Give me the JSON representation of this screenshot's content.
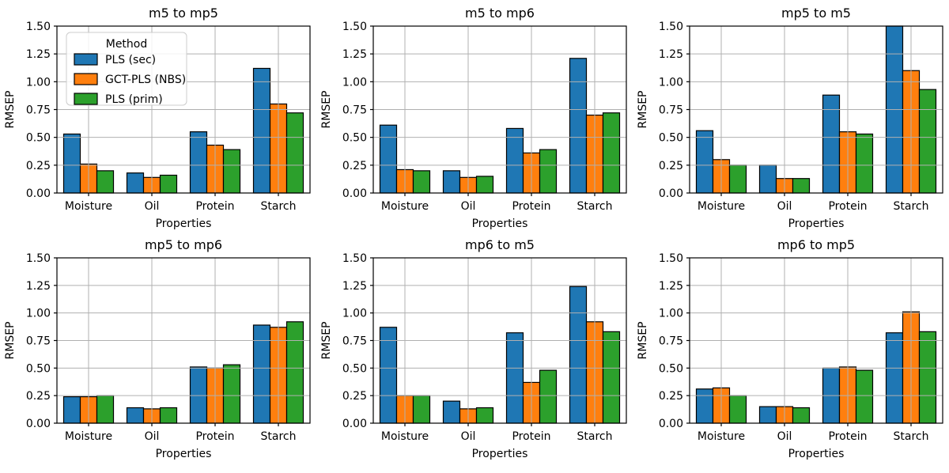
{
  "figure": {
    "background": "#ffffff",
    "grid_color": "#b0b0b0",
    "spine_color": "#000000",
    "bar_edge_color": "#000000",
    "text_color": "#000000",
    "xlabel": "Properties",
    "ylabel": "RMSEP",
    "ylim": [
      0,
      1.5
    ],
    "yticks": [
      0,
      0.25,
      0.5,
      0.75,
      1.0,
      1.25,
      1.5
    ],
    "ytick_labels": [
      "0.00",
      "0.25",
      "0.50",
      "0.75",
      "1.00",
      "1.25",
      "1.50"
    ],
    "grid": "on"
  },
  "legend": {
    "title": "Method",
    "position": "upper left",
    "entries": [
      {
        "label": "PLS (sec)",
        "color": "#1f77b4"
      },
      {
        "label": "GCT-PLS (NBS)",
        "color": "#ff7f0e"
      },
      {
        "label": "PLS (prim)",
        "color": "#2ca02c"
      }
    ]
  },
  "chart_data": [
    {
      "type": "bar",
      "title": "m5 to mp5",
      "xlabel": "Properties",
      "ylabel": "RMSEP",
      "ylim": [
        0,
        1.5
      ],
      "categories": [
        "Moisture",
        "Oil",
        "Protein",
        "Starch"
      ],
      "show_legend": true,
      "series": [
        {
          "name": "PLS (sec)",
          "color": "#1f77b4",
          "values": [
            0.53,
            0.18,
            0.55,
            1.12
          ]
        },
        {
          "name": "GCT-PLS (NBS)",
          "color": "#ff7f0e",
          "values": [
            0.26,
            0.14,
            0.43,
            0.8
          ]
        },
        {
          "name": "PLS (prim)",
          "color": "#2ca02c",
          "values": [
            0.2,
            0.16,
            0.39,
            0.72
          ]
        }
      ]
    },
    {
      "type": "bar",
      "title": "m5 to mp6",
      "xlabel": "Properties",
      "ylabel": "RMSEP",
      "ylim": [
        0,
        1.5
      ],
      "categories": [
        "Moisture",
        "Oil",
        "Protein",
        "Starch"
      ],
      "show_legend": false,
      "series": [
        {
          "name": "PLS (sec)",
          "color": "#1f77b4",
          "values": [
            0.61,
            0.2,
            0.58,
            1.21
          ]
        },
        {
          "name": "GCT-PLS (NBS)",
          "color": "#ff7f0e",
          "values": [
            0.21,
            0.14,
            0.36,
            0.7
          ]
        },
        {
          "name": "PLS (prim)",
          "color": "#2ca02c",
          "values": [
            0.2,
            0.15,
            0.39,
            0.72
          ]
        }
      ]
    },
    {
      "type": "bar",
      "title": "mp5 to m5",
      "xlabel": "Properties",
      "ylabel": "RMSEP",
      "ylim": [
        0,
        1.5
      ],
      "categories": [
        "Moisture",
        "Oil",
        "Protein",
        "Starch"
      ],
      "show_legend": false,
      "series": [
        {
          "name": "PLS (sec)",
          "color": "#1f77b4",
          "values": [
            0.56,
            0.25,
            0.88,
            1.5
          ]
        },
        {
          "name": "GCT-PLS (NBS)",
          "color": "#ff7f0e",
          "values": [
            0.3,
            0.13,
            0.55,
            1.1
          ]
        },
        {
          "name": "PLS (prim)",
          "color": "#2ca02c",
          "values": [
            0.25,
            0.13,
            0.53,
            0.93
          ]
        }
      ]
    },
    {
      "type": "bar",
      "title": "mp5 to mp6",
      "xlabel": "Properties",
      "ylabel": "RMSEP",
      "ylim": [
        0,
        1.5
      ],
      "categories": [
        "Moisture",
        "Oil",
        "Protein",
        "Starch"
      ],
      "show_legend": false,
      "series": [
        {
          "name": "PLS (sec)",
          "color": "#1f77b4",
          "values": [
            0.24,
            0.14,
            0.51,
            0.89
          ]
        },
        {
          "name": "GCT-PLS (NBS)",
          "color": "#ff7f0e",
          "values": [
            0.24,
            0.13,
            0.5,
            0.87
          ]
        },
        {
          "name": "PLS (prim)",
          "color": "#2ca02c",
          "values": [
            0.25,
            0.14,
            0.53,
            0.92
          ]
        }
      ]
    },
    {
      "type": "bar",
      "title": "mp6 to m5",
      "xlabel": "Properties",
      "ylabel": "RMSEP",
      "ylim": [
        0,
        1.5
      ],
      "categories": [
        "Moisture",
        "Oil",
        "Protein",
        "Starch"
      ],
      "show_legend": false,
      "series": [
        {
          "name": "PLS (sec)",
          "color": "#1f77b4",
          "values": [
            0.87,
            0.2,
            0.82,
            1.24
          ]
        },
        {
          "name": "GCT-PLS (NBS)",
          "color": "#ff7f0e",
          "values": [
            0.25,
            0.13,
            0.37,
            0.92
          ]
        },
        {
          "name": "PLS (prim)",
          "color": "#2ca02c",
          "values": [
            0.25,
            0.14,
            0.48,
            0.83
          ]
        }
      ]
    },
    {
      "type": "bar",
      "title": "mp6 to mp5",
      "xlabel": "Properties",
      "ylabel": "RMSEP",
      "ylim": [
        0,
        1.5
      ],
      "categories": [
        "Moisture",
        "Oil",
        "Protein",
        "Starch"
      ],
      "show_legend": false,
      "series": [
        {
          "name": "PLS (sec)",
          "color": "#1f77b4",
          "values": [
            0.31,
            0.15,
            0.5,
            0.82
          ]
        },
        {
          "name": "GCT-PLS (NBS)",
          "color": "#ff7f0e",
          "values": [
            0.32,
            0.15,
            0.51,
            1.01
          ]
        },
        {
          "name": "PLS (prim)",
          "color": "#2ca02c",
          "values": [
            0.25,
            0.14,
            0.48,
            0.83
          ]
        }
      ]
    }
  ]
}
